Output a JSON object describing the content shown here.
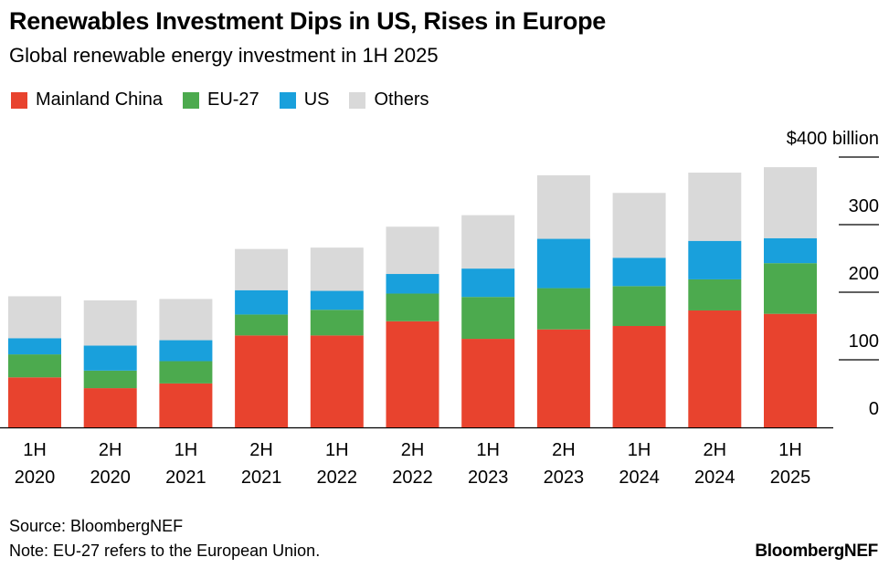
{
  "chart_data": {
    "type": "bar",
    "stacked": true,
    "title": "Renewables Investment Dips in US, Rises in Europe",
    "subtitle": "Global renewable energy investment in 1H 2025",
    "categories": [
      [
        "1H",
        "2020"
      ],
      [
        "2H",
        "2020"
      ],
      [
        "1H",
        "2021"
      ],
      [
        "2H",
        "2021"
      ],
      [
        "1H",
        "2022"
      ],
      [
        "2H",
        "2022"
      ],
      [
        "1H",
        "2023"
      ],
      [
        "2H",
        "2023"
      ],
      [
        "1H",
        "2024"
      ],
      [
        "2H",
        "2024"
      ],
      [
        "1H",
        "2025"
      ]
    ],
    "series": [
      {
        "name": "Mainland China",
        "color": "#e8432e",
        "values": [
          74,
          58,
          65,
          136,
          136,
          157,
          131,
          145,
          150,
          173,
          168
        ]
      },
      {
        "name": "EU-27",
        "color": "#4caa4e",
        "values": [
          34,
          26,
          33,
          31,
          38,
          41,
          62,
          61,
          59,
          46,
          75
        ]
      },
      {
        "name": "US",
        "color": "#19a0dc",
        "values": [
          24,
          37,
          31,
          36,
          28,
          29,
          42,
          73,
          42,
          57,
          37
        ]
      },
      {
        "name": "Others",
        "color": "#d9d9d9",
        "values": [
          62,
          67,
          61,
          61,
          64,
          70,
          79,
          94,
          96,
          101,
          105
        ]
      }
    ],
    "ylim": [
      0,
      400
    ],
    "yticks": [
      0,
      100,
      200,
      300,
      400
    ],
    "ytick_labels": [
      "0",
      "100",
      "200",
      "300",
      "$400 billion"
    ],
    "legend_position": "top-left"
  },
  "footer": {
    "source": "Source: BloombergNEF",
    "note": "Note: EU-27 refers to the European Union.",
    "brand": "BloombergNEF"
  }
}
